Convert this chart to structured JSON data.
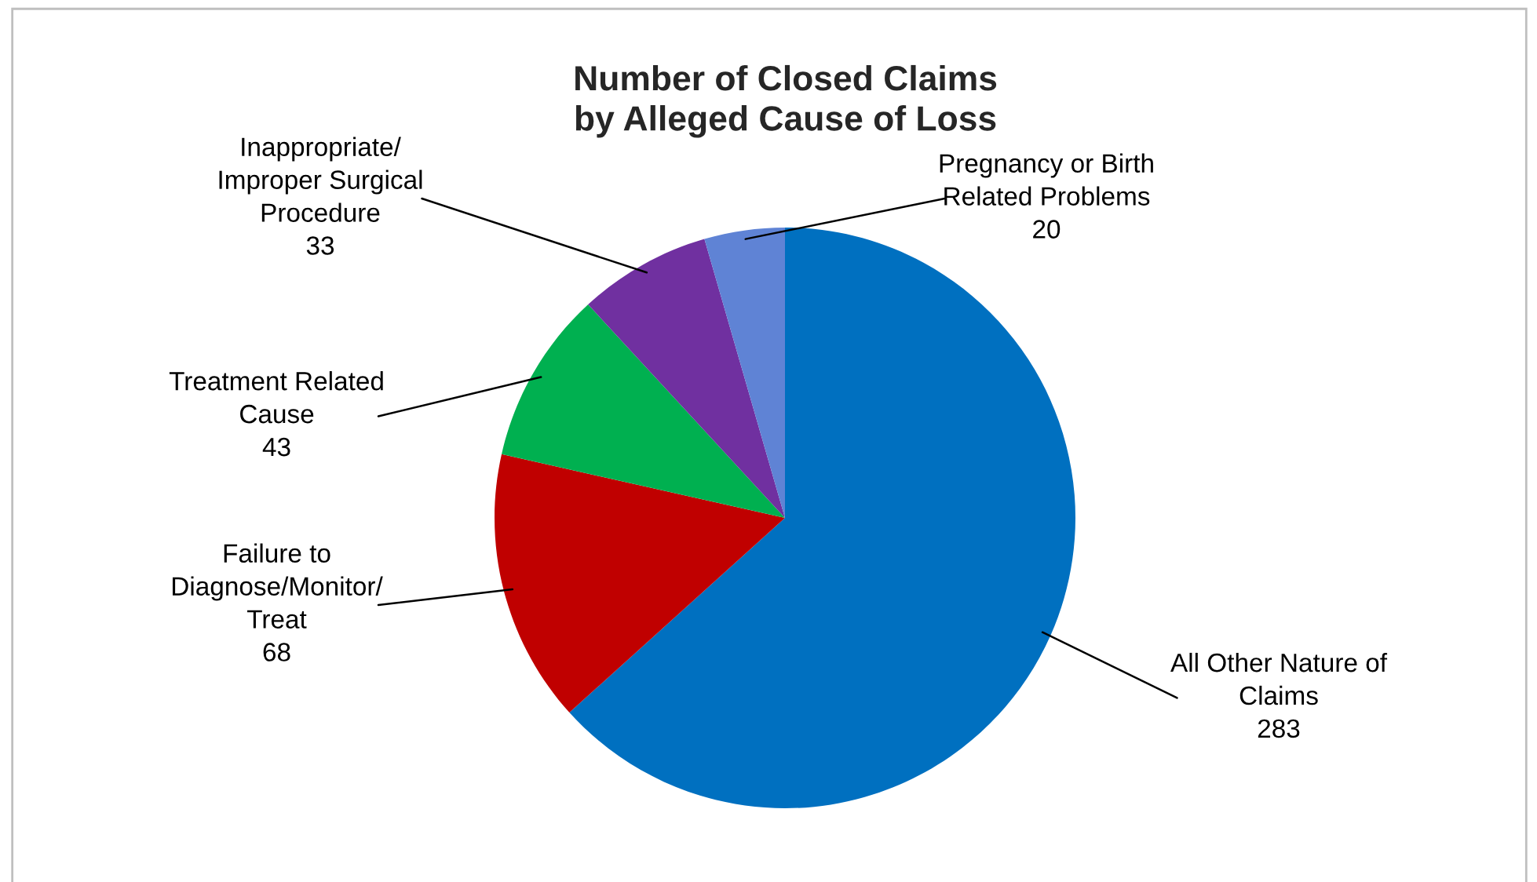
{
  "chart_data": {
    "type": "pie",
    "title": "Number of Closed Claims\nby Alleged Cause of Loss",
    "categories": [
      "All Other Nature of\nClaims",
      "Failure to\nDiagnose/Monitor/\nTreat",
      "Treatment Related\nCause",
      "Inappropriate/\nImproper Surgical\nProcedure",
      "Pregnancy or Birth\nRelated Problems"
    ],
    "values": [
      283,
      68,
      43,
      33,
      20
    ],
    "colors": [
      "#0070c0",
      "#c00000",
      "#00b050",
      "#7030a0",
      "#5f83d5"
    ],
    "data_labels": true
  }
}
